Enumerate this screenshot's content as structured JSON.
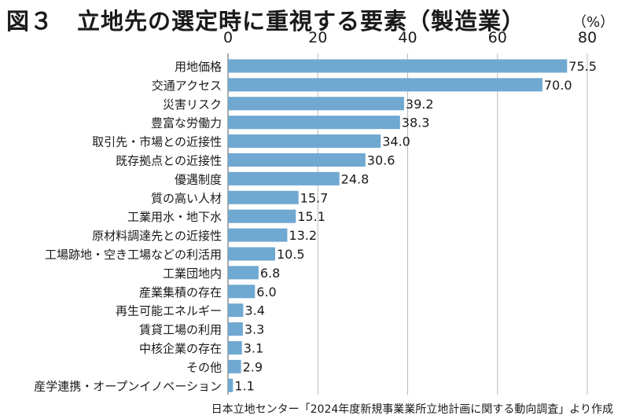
{
  "chart_data": {
    "type": "bar",
    "orientation": "horizontal",
    "title": "図３　立地先の選定時に重視する要素（製造業）",
    "unit": "（%）",
    "source": "日本立地センター「2024年度新規事業業所立地計画に関する動向調査」より作成",
    "xlim": [
      0,
      80
    ],
    "xticks": [
      "0",
      "20",
      "40",
      "60",
      "80"
    ],
    "grid": true,
    "bar_color": "#6fa8d1",
    "categories": [
      "用地価格",
      "交通アクセス",
      "災害リスク",
      "豊富な労働力",
      "取引先・市場との近接性",
      "既存拠点との近接性",
      "優遇制度",
      "質の高い人材",
      "工業用水・地下水",
      "原材料調達先との近接性",
      "工場跡地・空き工場などの利活用",
      "工業団地内",
      "産業集積の存在",
      "再生可能エネルギー",
      "賃貸工場の利用",
      "中核企業の存在",
      "その他",
      "産学連携・オープンイノベーション"
    ],
    "values": [
      75.5,
      70.0,
      39.2,
      38.3,
      34.0,
      30.6,
      24.8,
      15.7,
      15.1,
      13.2,
      10.5,
      6.8,
      6.0,
      3.4,
      3.3,
      3.1,
      2.9,
      1.1
    ],
    "value_labels": [
      "75.5",
      "70.0",
      "39.2",
      "38.3",
      "34.0",
      "30.6",
      "24.8",
      "15.7",
      "15.1",
      "13.2",
      "10.5",
      "6.8",
      "6.0",
      "3.4",
      "3.3",
      "3.1",
      "2.9",
      "1.1"
    ]
  }
}
